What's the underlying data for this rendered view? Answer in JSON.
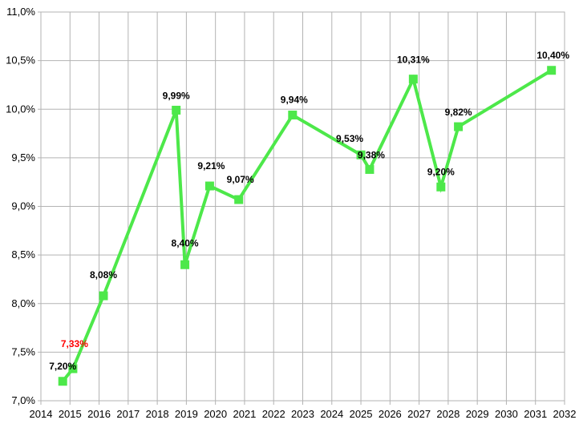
{
  "chart_data": {
    "type": "line",
    "title": "",
    "xlabel": "",
    "ylabel": "",
    "xlim": [
      2014,
      2032
    ],
    "ylim": [
      7.0,
      11.0
    ],
    "x_ticks": [
      "2014",
      "2015",
      "2016",
      "2017",
      "2018",
      "2019",
      "2020",
      "2021",
      "2022",
      "2023",
      "2024",
      "2025",
      "2026",
      "2027",
      "2028",
      "2029",
      "2030",
      "2031",
      "2032"
    ],
    "y_ticks": [
      "7,0%",
      "7,5%",
      "8,0%",
      "8,5%",
      "9,0%",
      "9,5%",
      "10,0%",
      "10,5%",
      "11,0%"
    ],
    "grid": true,
    "legend": "none",
    "series": [
      {
        "color": "#4de84a",
        "marker": "square",
        "points": [
          {
            "x": 2014.75,
            "y": 7.2,
            "label": "7,20%"
          },
          {
            "x": 2015.1,
            "y": 7.33,
            "label": "7,33%",
            "label_color": "#ff0000"
          },
          {
            "x": 2016.15,
            "y": 8.08,
            "label": "8,08%"
          },
          {
            "x": 2018.65,
            "y": 9.99,
            "label": "9,99%"
          },
          {
            "x": 2018.95,
            "y": 8.4,
            "label": "8,40%"
          },
          {
            "x": 2019.8,
            "y": 9.21,
            "label": "9,21%"
          },
          {
            "x": 2020.8,
            "y": 9.07,
            "label": "9,07%"
          },
          {
            "x": 2022.65,
            "y": 9.94,
            "label": "9,94%"
          },
          {
            "x": 2025.0,
            "y": 9.53,
            "label": "9,53%"
          },
          {
            "x": 2025.3,
            "y": 9.38,
            "label": "9,38%"
          },
          {
            "x": 2026.8,
            "y": 10.31,
            "label": "10,31%"
          },
          {
            "x": 2027.75,
            "y": 9.2,
            "label": "9,20%"
          },
          {
            "x": 2028.35,
            "y": 9.82,
            "label": "9,82%"
          },
          {
            "x": 2031.55,
            "y": 10.4,
            "label": "10,40%"
          }
        ]
      }
    ]
  }
}
